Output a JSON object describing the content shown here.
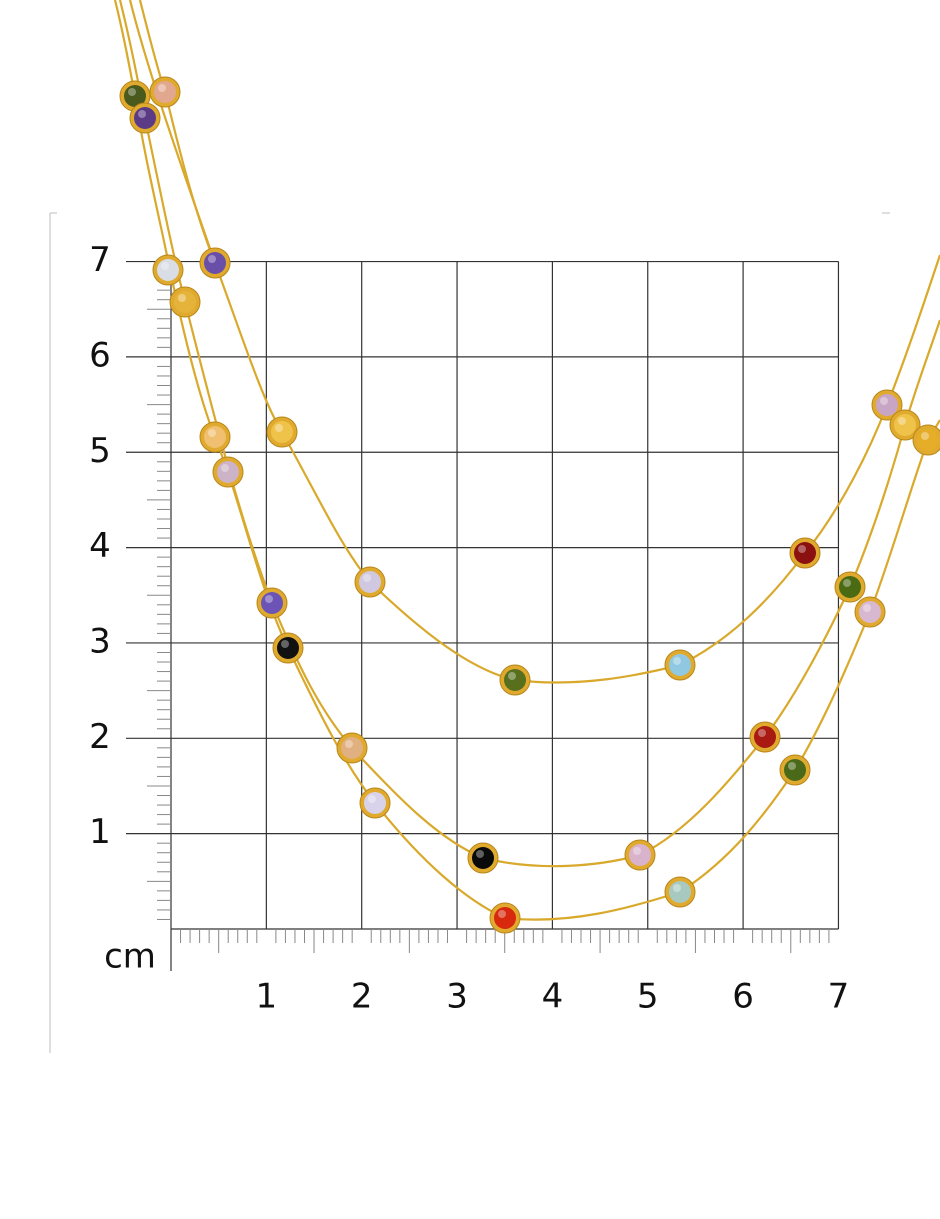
{
  "scale": {
    "unit": "cm",
    "x_labels": [
      1,
      2,
      3,
      4,
      5,
      6,
      7
    ],
    "y_labels": [
      1,
      2,
      3,
      4,
      5,
      6,
      7
    ]
  }
}
